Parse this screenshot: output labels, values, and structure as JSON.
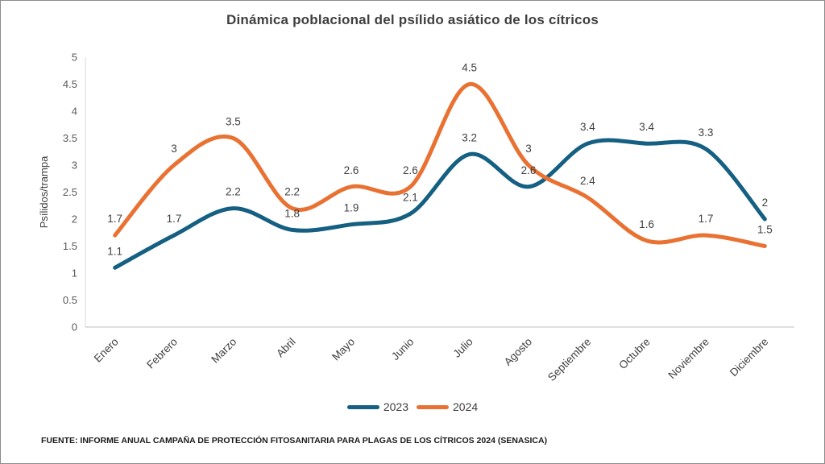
{
  "chart_data": {
    "type": "line",
    "title": "Dinámica poblacional del psílido asiático de los cítricos",
    "xlabel": "",
    "ylabel": "Psílidos/trampa",
    "categories": [
      "Enero",
      "Febrero",
      "Marzo",
      "Abril",
      "Mayo",
      "Junio",
      "Julio",
      "Agosto",
      "Septiembre",
      "Octubre",
      "Noviembre",
      "Diciembre"
    ],
    "series": [
      {
        "name": "2023",
        "color": "#156082",
        "values": [
          1.1,
          1.7,
          2.2,
          1.8,
          1.9,
          2.1,
          3.2,
          2.6,
          3.4,
          3.4,
          3.3,
          2
        ]
      },
      {
        "name": "2024",
        "color": "#E97132",
        "values": [
          1.7,
          3,
          3.5,
          2.2,
          2.6,
          2.6,
          4.5,
          3,
          2.4,
          1.6,
          1.7,
          1.5
        ]
      }
    ],
    "ylim": [
      0,
      5
    ],
    "ytick_step": 0.5,
    "grid": false,
    "smooth": true,
    "data_labels": true,
    "legend_position": "bottom"
  },
  "footer": {
    "source": "FUENTE: INFORME ANUAL CAMPAÑA DE PROTECCIÓN FITOSANITARIA PARA PLAGAS DE LOS CÍTRICOS 2024 (SENASICA)"
  },
  "colors": {
    "axis_line": "#bfbfbf",
    "axis_line_left": "#d9d9d9",
    "tick_text": "#595959",
    "label_text": "#404040"
  }
}
